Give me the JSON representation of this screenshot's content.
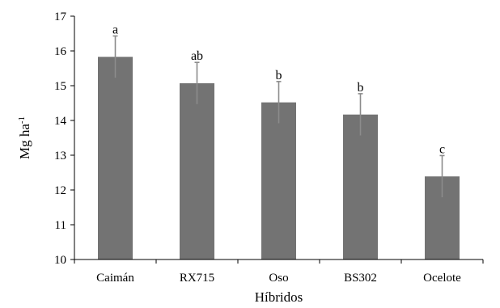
{
  "chart_data": {
    "type": "bar",
    "categories": [
      "Caimán",
      "RX715",
      "Oso",
      "BS302",
      "Ocelote"
    ],
    "values": [
      15.83,
      15.07,
      14.52,
      14.17,
      12.39
    ],
    "error": [
      0.6,
      0.6,
      0.6,
      0.6,
      0.6
    ],
    "letters": [
      "a",
      "ab",
      "b",
      "b",
      "c"
    ],
    "xlabel": "Híbridos",
    "ylabel_main": "Mg ha",
    "ylabel_sup": "-1",
    "ylim": [
      10,
      17
    ],
    "yticks": [
      "10",
      "11",
      "12",
      "13",
      "14",
      "15",
      "16",
      "17"
    ],
    "bar_color": "#737373",
    "error_color": "#8c8c8c",
    "grid": false,
    "legend": "none"
  }
}
